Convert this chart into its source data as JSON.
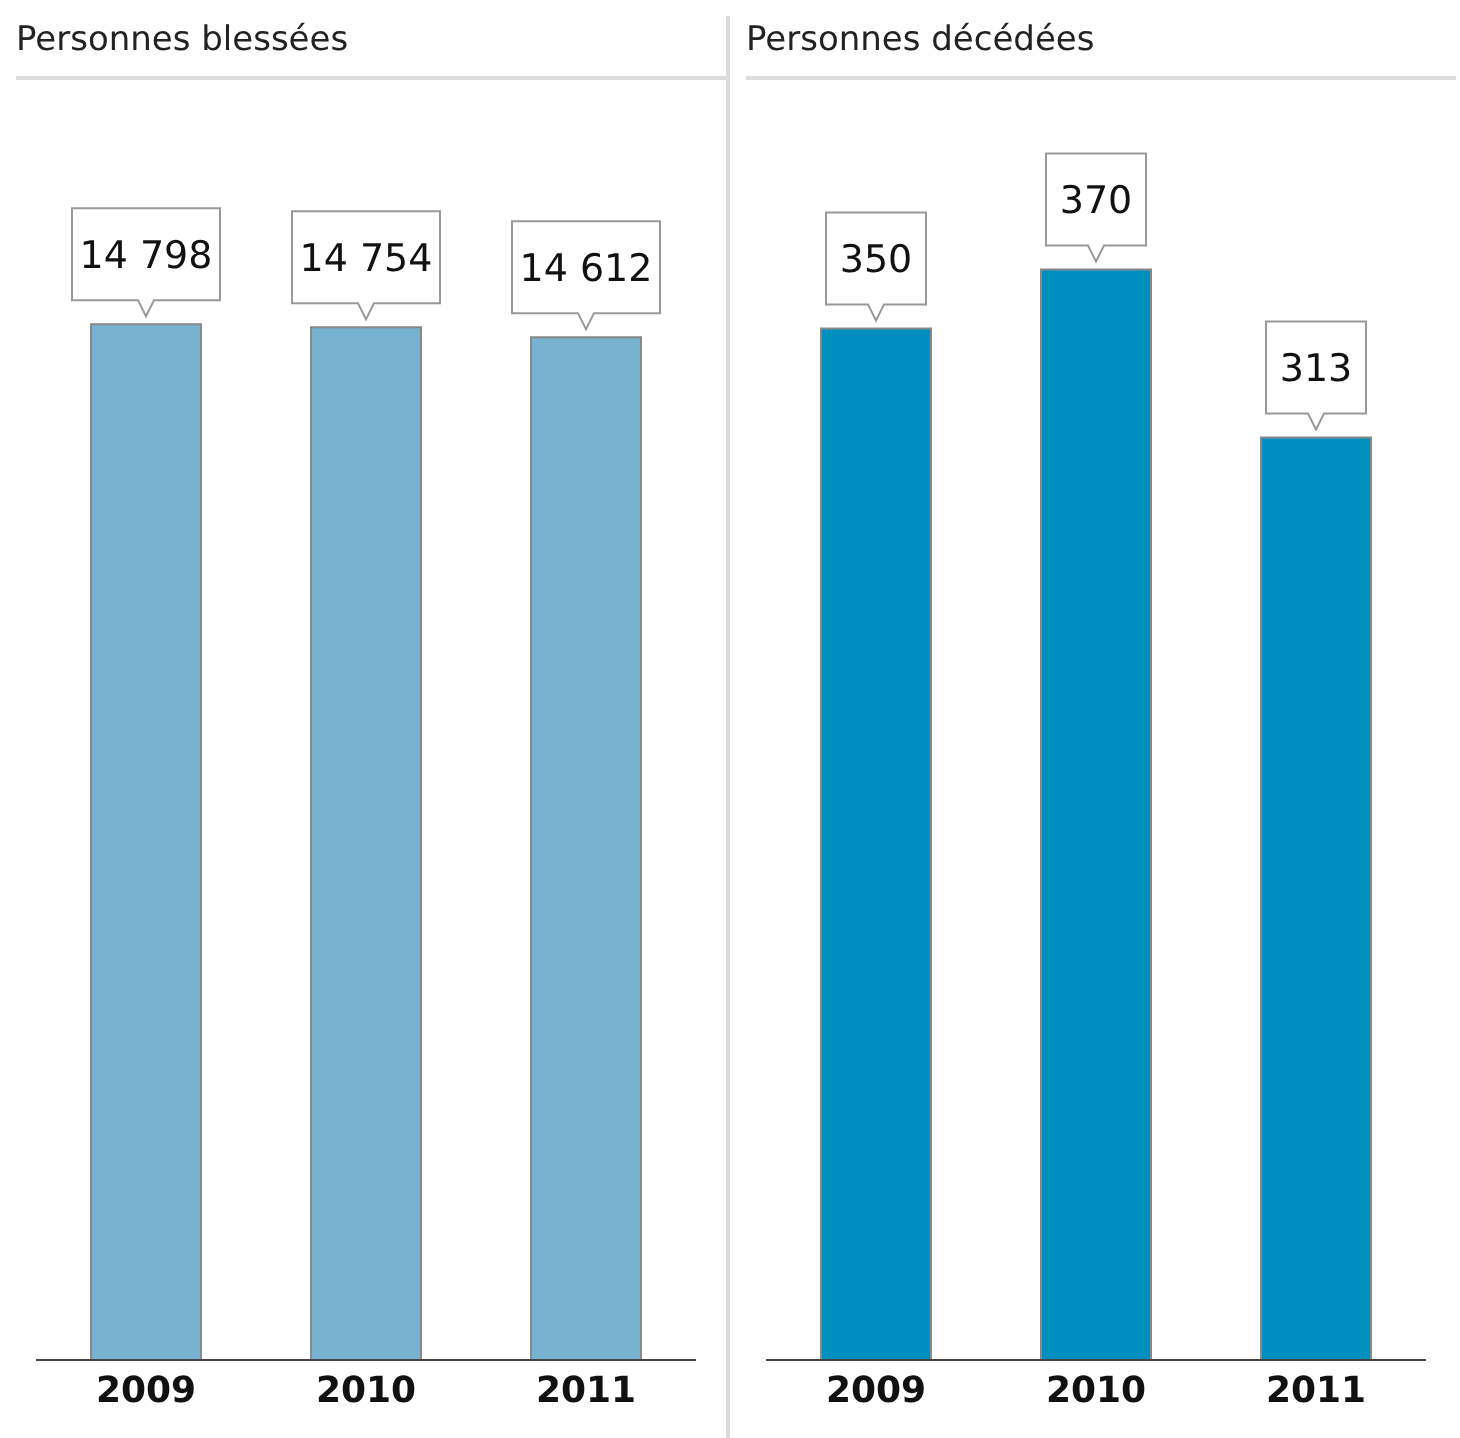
{
  "chart_data": [
    {
      "type": "bar",
      "title": "Personnes blessées",
      "categories": [
        "2009",
        "2010",
        "2011"
      ],
      "values": [
        14798,
        14754,
        14612
      ],
      "value_labels": [
        "14 798",
        "14 754",
        "14 612"
      ],
      "color": "#77b3d0",
      "tick_labels": "x"
    },
    {
      "type": "bar",
      "title": "Personnes décédées",
      "categories": [
        "2009",
        "2010",
        "2011"
      ],
      "values": [
        350,
        370,
        313
      ],
      "value_labels": [
        "350",
        "370",
        "313"
      ],
      "color": "#0090c0",
      "tick_labels": "x"
    }
  ]
}
